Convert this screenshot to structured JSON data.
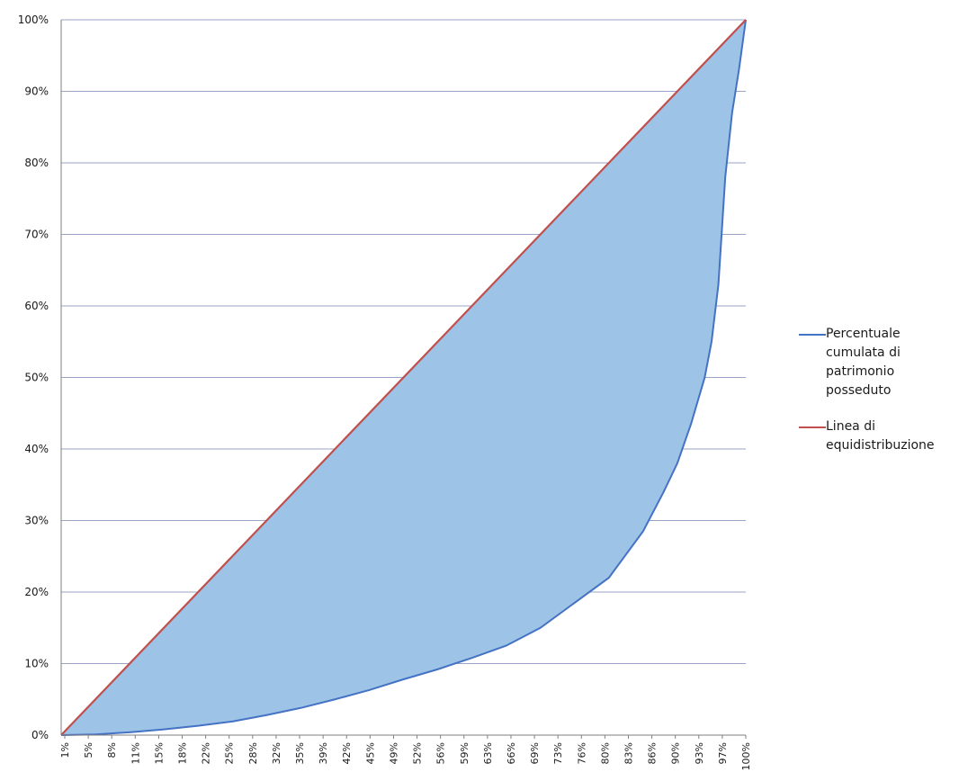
{
  "chart_data": {
    "type": "area",
    "title": "",
    "xlabel": "",
    "ylabel": "",
    "ylim": [
      0,
      100
    ],
    "y_ticks": [
      "0%",
      "10%",
      "20%",
      "30%",
      "40%",
      "50%",
      "60%",
      "70%",
      "80%",
      "90%",
      "100%"
    ],
    "x_ticks": [
      "1%",
      "5%",
      "8%",
      "11%",
      "15%",
      "18%",
      "22%",
      "25%",
      "28%",
      "32%",
      "35%",
      "39%",
      "42%",
      "45%",
      "49%",
      "52%",
      "56%",
      "59%",
      "63%",
      "66%",
      "69%",
      "73%",
      "76%",
      "80%",
      "83%",
      "86%",
      "90%",
      "93%",
      "97%",
      "100%"
    ],
    "grid": true,
    "legend_position": "right",
    "series": [
      {
        "name": "Percentuale cumulata di patrimonio posseduto",
        "color": "#4472c4",
        "fill": "#9dc3e6",
        "points": [
          [
            0,
            0
          ],
          [
            5,
            0.1
          ],
          [
            10,
            0.4
          ],
          [
            15,
            0.8
          ],
          [
            20,
            1.3
          ],
          [
            25,
            1.9
          ],
          [
            30,
            2.8
          ],
          [
            35,
            3.8
          ],
          [
            40,
            5
          ],
          [
            45,
            6.3
          ],
          [
            50,
            7.8
          ],
          [
            55,
            9.2
          ],
          [
            60,
            10.8
          ],
          [
            65,
            12.5
          ],
          [
            70,
            15
          ],
          [
            75,
            18.5
          ],
          [
            80,
            22
          ],
          [
            85,
            28.5
          ],
          [
            88,
            34
          ],
          [
            90,
            38
          ],
          [
            92,
            43.5
          ],
          [
            94,
            50
          ],
          [
            95,
            55
          ],
          [
            96,
            63
          ],
          [
            97,
            78
          ],
          [
            98,
            87
          ],
          [
            99,
            93
          ],
          [
            100,
            100
          ]
        ]
      },
      {
        "name": "Linea di equidistribuzione",
        "color": "#c0504d",
        "points": [
          [
            0,
            0
          ],
          [
            100,
            100
          ]
        ]
      }
    ]
  }
}
